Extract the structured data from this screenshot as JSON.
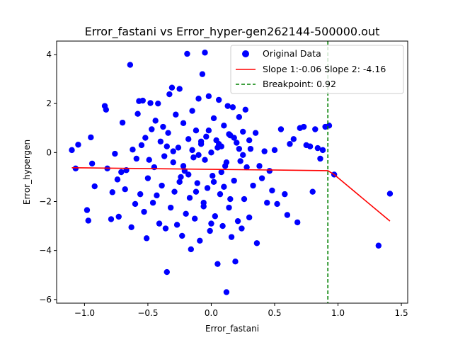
{
  "chart_data": {
    "type": "scatter",
    "title": "Error_fastani vs Error_hyper-gen262144-500000.out",
    "xlabel": "Error_fastani",
    "ylabel": "Error_hypergen",
    "xlim": [
      -1.22,
      1.55
    ],
    "ylim": [
      -6.15,
      4.55
    ],
    "x_ticks": [
      -1.0,
      -0.5,
      0.0,
      0.5,
      1.0,
      1.5
    ],
    "x_tick_labels": [
      "−1.0",
      "−0.5",
      "0.0",
      "0.5",
      "1.0",
      "1.5"
    ],
    "y_ticks": [
      -6,
      -4,
      -2,
      0,
      2,
      4
    ],
    "y_tick_labels": [
      "−6",
      "−4",
      "−2",
      "0",
      "2",
      "4"
    ],
    "grid": false,
    "legend_position": "top-right",
    "series": [
      {
        "name": "Original Data",
        "kind": "scatter",
        "color": "#0000ff",
        "points": [
          [
            -1.1,
            0.1
          ],
          [
            -1.07,
            -0.65
          ],
          [
            -1.05,
            0.32
          ],
          [
            -0.98,
            -2.35
          ],
          [
            -0.97,
            -2.78
          ],
          [
            -0.95,
            0.62
          ],
          [
            -0.94,
            -0.45
          ],
          [
            -0.92,
            -1.38
          ],
          [
            -0.84,
            1.9
          ],
          [
            -0.83,
            1.75
          ],
          [
            -0.82,
            -0.65
          ],
          [
            -0.79,
            -2.72
          ],
          [
            -0.78,
            -1.62
          ],
          [
            -0.76,
            -0.05
          ],
          [
            -0.74,
            -1.1
          ],
          [
            -0.73,
            -2.62
          ],
          [
            -0.71,
            -0.8
          ],
          [
            -0.7,
            1.22
          ],
          [
            -0.68,
            -1.5
          ],
          [
            -0.67,
            -0.72
          ],
          [
            -0.64,
            3.58
          ],
          [
            -0.63,
            -3.05
          ],
          [
            -0.62,
            0.12
          ],
          [
            -0.6,
            -2.1
          ],
          [
            -0.59,
            -0.25
          ],
          [
            -0.58,
            1.58
          ],
          [
            -0.57,
            2.1
          ],
          [
            -0.56,
            -1.7
          ],
          [
            -0.55,
            0.3
          ],
          [
            -0.54,
            2.12
          ],
          [
            -0.53,
            -2.42
          ],
          [
            -0.52,
            0.6
          ],
          [
            -0.51,
            -3.5
          ],
          [
            -0.5,
            -1.05
          ],
          [
            -0.49,
            -0.3
          ],
          [
            -0.48,
            2.02
          ],
          [
            -0.47,
            0.95
          ],
          [
            -0.46,
            -2.05
          ],
          [
            -0.45,
            -0.6
          ],
          [
            -0.44,
            1.3
          ],
          [
            -0.43,
            -1.75
          ],
          [
            -0.42,
            2.0
          ],
          [
            -0.41,
            -2.9
          ],
          [
            -0.4,
            0.45
          ],
          [
            -0.39,
            -1.35
          ],
          [
            -0.38,
            1.05
          ],
          [
            -0.37,
            -0.15
          ],
          [
            -0.36,
            -3.1
          ],
          [
            -0.35,
            -4.88
          ],
          [
            -0.34,
            0.8
          ],
          [
            -0.33,
            2.38
          ],
          [
            -0.32,
            -2.25
          ],
          [
            -0.31,
            2.65
          ],
          [
            -0.3,
            -0.4
          ],
          [
            -0.29,
            -1.6
          ],
          [
            -0.28,
            1.55
          ],
          [
            -0.27,
            -2.95
          ],
          [
            -0.26,
            0.2
          ],
          [
            -0.25,
            2.6
          ],
          [
            -0.24,
            -1.0
          ],
          [
            -0.23,
            -3.4
          ],
          [
            -0.22,
            1.2
          ],
          [
            -0.21,
            -0.75
          ],
          [
            -0.2,
            -2.5
          ],
          [
            -0.19,
            4.03
          ],
          [
            -0.18,
            0.55
          ],
          [
            -0.17,
            -1.85
          ],
          [
            -0.16,
            -3.95
          ],
          [
            -0.15,
            1.7
          ],
          [
            -0.14,
            -0.2
          ],
          [
            -0.13,
            -2.7
          ],
          [
            -0.12,
            0.9
          ],
          [
            -0.11,
            -1.25
          ],
          [
            -0.1,
            2.2
          ],
          [
            -0.09,
            -3.6
          ],
          [
            -0.08,
            0.35
          ],
          [
            -0.07,
            3.2
          ],
          [
            -0.06,
            -2.05
          ],
          [
            -0.05,
            4.08
          ],
          [
            -0.04,
            0.65
          ],
          [
            -0.03,
            -1.45
          ],
          [
            -0.02,
            2.3
          ],
          [
            -0.01,
            -3.2
          ],
          [
            0.0,
            0.0
          ],
          [
            0.01,
            -0.95
          ],
          [
            0.02,
            1.4
          ],
          [
            0.03,
            -2.6
          ],
          [
            0.04,
            0.5
          ],
          [
            0.05,
            -4.55
          ],
          [
            0.06,
            2.15
          ],
          [
            0.07,
            -1.7
          ],
          [
            0.08,
            0.25
          ],
          [
            0.09,
            -3.0
          ],
          [
            0.1,
            1.1
          ],
          [
            0.11,
            -0.55
          ],
          [
            0.12,
            -5.7
          ],
          [
            0.13,
            1.9
          ],
          [
            0.14,
            -2.25
          ],
          [
            0.15,
            0.7
          ],
          [
            0.16,
            -3.45
          ],
          [
            0.17,
            1.85
          ],
          [
            0.18,
            -1.15
          ],
          [
            0.19,
            -4.45
          ],
          [
            0.2,
            0.4
          ],
          [
            0.21,
            -2.8
          ],
          [
            0.22,
            1.45
          ],
          [
            0.23,
            -0.35
          ],
          [
            0.24,
            -3.1
          ],
          [
            0.25,
            0.85
          ],
          [
            0.26,
            -1.9
          ],
          [
            0.27,
            1.75
          ],
          [
            0.28,
            -0.6
          ],
          [
            0.3,
            -2.65
          ],
          [
            0.31,
            0.15
          ],
          [
            0.33,
            -1.35
          ],
          [
            0.35,
            0.8
          ],
          [
            0.36,
            -3.7
          ],
          [
            0.38,
            -0.55
          ],
          [
            0.4,
            -1.05
          ],
          [
            0.42,
            0.05
          ],
          [
            0.44,
            -2.05
          ],
          [
            0.46,
            -0.75
          ],
          [
            0.48,
            -1.55
          ],
          [
            0.5,
            0.1
          ],
          [
            0.52,
            -2.1
          ],
          [
            0.55,
            0.95
          ],
          [
            0.58,
            -1.7
          ],
          [
            0.6,
            -2.55
          ],
          [
            0.62,
            0.35
          ],
          [
            0.65,
            0.55
          ],
          [
            0.68,
            -2.85
          ],
          [
            0.7,
            1.0
          ],
          [
            0.73,
            1.05
          ],
          [
            0.75,
            0.3
          ],
          [
            0.78,
            0.25
          ],
          [
            0.8,
            -1.6
          ],
          [
            0.82,
            0.95
          ],
          [
            0.84,
            0.18
          ],
          [
            0.86,
            -0.25
          ],
          [
            0.88,
            0.1
          ],
          [
            0.9,
            1.05
          ],
          [
            0.93,
            1.1
          ],
          [
            0.97,
            -0.9
          ],
          [
            1.32,
            -3.8
          ],
          [
            1.41,
            -1.68
          ],
          [
            -0.15,
            0.1
          ],
          [
            -0.05,
            -0.3
          ],
          [
            0.05,
            0.2
          ],
          [
            0.12,
            -0.4
          ],
          [
            -0.08,
            0.45
          ],
          [
            0.18,
            0.6
          ],
          [
            -0.22,
            -0.55
          ],
          [
            0.02,
            -1.2
          ],
          [
            0.25,
            -0.1
          ],
          [
            -0.3,
            0.05
          ],
          [
            0.08,
            -0.8
          ],
          [
            -0.12,
            -1.6
          ],
          [
            0.15,
            -1.9
          ],
          [
            -0.02,
            0.9
          ],
          [
            0.22,
            0.15
          ],
          [
            -0.18,
            -0.9
          ],
          [
            0.06,
            0.35
          ],
          [
            -0.06,
            -2.2
          ],
          [
            0.1,
            -1.4
          ],
          [
            -0.25,
            -1.2
          ],
          [
            0.3,
            0.5
          ],
          [
            -0.35,
            0.25
          ],
          [
            0.0,
            -2.9
          ],
          [
            0.14,
            0.75
          ],
          [
            -0.1,
            -0.1
          ]
        ]
      },
      {
        "name": "Slope 1:-0.06 Slope 2: -4.16",
        "kind": "line",
        "color": "#ff0000",
        "points": [
          [
            -1.1,
            -0.62
          ],
          [
            0.92,
            -0.74
          ],
          [
            0.97,
            -0.9
          ],
          [
            1.41,
            -2.8
          ]
        ]
      },
      {
        "name": "Breakpoint: 0.92",
        "kind": "vline",
        "color": "#008000",
        "x": 0.92
      }
    ]
  }
}
